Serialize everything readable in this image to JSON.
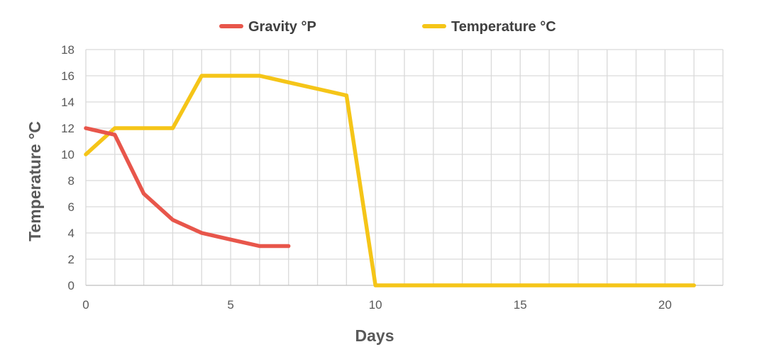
{
  "chart_data": {
    "type": "line",
    "title": "",
    "xlabel": "Days",
    "ylabel": "Temperature °C",
    "xlim": [
      0,
      22
    ],
    "ylim": [
      0,
      18
    ],
    "x_ticks": [
      0,
      5,
      10,
      15,
      20
    ],
    "y_ticks": [
      0,
      2,
      4,
      6,
      8,
      10,
      12,
      14,
      16,
      18
    ],
    "grid": true,
    "legend_position": "top",
    "series": [
      {
        "name": "Gravity °P",
        "color": "#e8564b",
        "x": [
          0,
          1,
          2,
          3,
          3.5,
          4,
          5,
          6,
          7
        ],
        "y": [
          12,
          11.5,
          7,
          5,
          4.5,
          4,
          3.5,
          3,
          3
        ]
      },
      {
        "name": "Temperature °C",
        "color": "#f5c518",
        "x": [
          0,
          1,
          2,
          3,
          4,
          5,
          6,
          7,
          8,
          9,
          10,
          11,
          12,
          13,
          14,
          15,
          16,
          17,
          18,
          19,
          20,
          21
        ],
        "y": [
          10,
          12,
          12,
          12,
          16,
          16,
          16,
          15.5,
          15,
          14.5,
          0,
          0,
          0,
          0,
          0,
          0,
          0,
          0,
          0,
          0,
          0,
          0
        ]
      }
    ]
  }
}
